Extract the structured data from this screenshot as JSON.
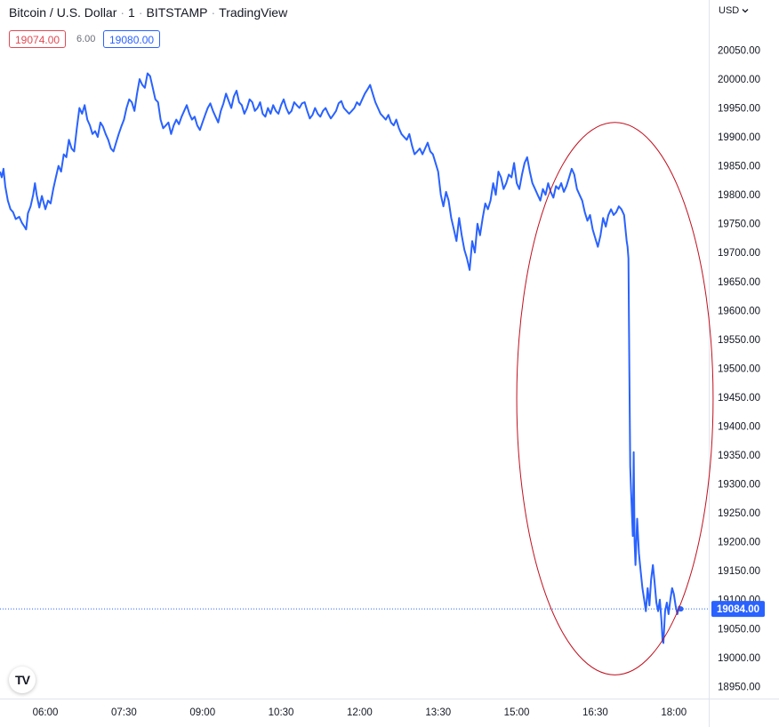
{
  "header": {
    "symbol": "Bitcoin / U.S. Dollar",
    "interval": "1",
    "exchange": "BITSTAMP",
    "provider": "TradingView",
    "separator": "·"
  },
  "quotes": {
    "bid": "19074.00",
    "spread": "6.00",
    "ask": "19080.00"
  },
  "currency_button": "USD",
  "logo": "TV",
  "colors": {
    "line": "#2962ff",
    "annotation": "#c0101e",
    "bid": "#e04a54",
    "ask": "#2962ff"
  },
  "chart_data": {
    "type": "line",
    "title": "Bitcoin / U.S. Dollar · 1 · BITSTAMP · TradingView",
    "xlabel": "",
    "ylabel": "",
    "x_ticks": [
      "06:00",
      "07:30",
      "09:00",
      "10:30",
      "12:00",
      "13:30",
      "15:00",
      "16:30",
      "18:00"
    ],
    "y_ticks": [
      "20050.00",
      "20000.00",
      "19950.00",
      "19900.00",
      "19850.00",
      "19800.00",
      "19750.00",
      "19700.00",
      "19650.00",
      "19600.00",
      "19550.00",
      "19500.00",
      "19450.00",
      "19400.00",
      "19350.00",
      "19300.00",
      "19250.00",
      "19200.00",
      "19150.00",
      "19100.00",
      "19050.00",
      "19000.00",
      "18950.00"
    ],
    "ylim": [
      18930,
      20100
    ],
    "xlim": [
      "05:08",
      "18:40"
    ],
    "grid": false,
    "last_price_label": "19084.00",
    "last_price": 19084,
    "annotation": {
      "type": "ellipse",
      "from_time": "15:00",
      "to_time": "18:45",
      "from_price": 18970,
      "to_price": 19925
    },
    "series": [
      {
        "points": [
          [
            "05:08",
            19840
          ],
          [
            "05:10",
            19830
          ],
          [
            "05:12",
            19845
          ],
          [
            "05:14",
            19815
          ],
          [
            "05:17",
            19790
          ],
          [
            "05:20",
            19775
          ],
          [
            "05:23",
            19770
          ],
          [
            "05:26",
            19758
          ],
          [
            "05:30",
            19762
          ],
          [
            "05:33",
            19752
          ],
          [
            "05:36",
            19745
          ],
          [
            "05:38",
            19740
          ],
          [
            "05:40",
            19768
          ],
          [
            "05:43",
            19780
          ],
          [
            "05:46",
            19800
          ],
          [
            "05:48",
            19820
          ],
          [
            "05:50",
            19800
          ],
          [
            "05:53",
            19778
          ],
          [
            "05:56",
            19798
          ],
          [
            "06:00",
            19775
          ],
          [
            "06:03",
            19790
          ],
          [
            "06:06",
            19785
          ],
          [
            "06:09",
            19810
          ],
          [
            "06:12",
            19830
          ],
          [
            "06:15",
            19850
          ],
          [
            "06:18",
            19840
          ],
          [
            "06:21",
            19870
          ],
          [
            "06:24",
            19865
          ],
          [
            "06:27",
            19895
          ],
          [
            "06:30",
            19880
          ],
          [
            "06:33",
            19875
          ],
          [
            "06:36",
            19915
          ],
          [
            "06:39",
            19950
          ],
          [
            "06:42",
            19940
          ],
          [
            "06:45",
            19955
          ],
          [
            "06:48",
            19930
          ],
          [
            "06:51",
            19920
          ],
          [
            "06:54",
            19905
          ],
          [
            "06:57",
            19910
          ],
          [
            "07:00",
            19900
          ],
          [
            "07:03",
            19925
          ],
          [
            "07:06",
            19918
          ],
          [
            "07:09",
            19905
          ],
          [
            "07:12",
            19895
          ],
          [
            "07:15",
            19880
          ],
          [
            "07:18",
            19875
          ],
          [
            "07:21",
            19890
          ],
          [
            "07:24",
            19905
          ],
          [
            "07:27",
            19918
          ],
          [
            "07:30",
            19930
          ],
          [
            "07:33",
            19950
          ],
          [
            "07:36",
            19965
          ],
          [
            "07:39",
            19960
          ],
          [
            "07:42",
            19945
          ],
          [
            "07:45",
            19975
          ],
          [
            "07:48",
            20000
          ],
          [
            "07:51",
            19990
          ],
          [
            "07:54",
            19985
          ],
          [
            "07:57",
            20010
          ],
          [
            "08:00",
            20005
          ],
          [
            "08:03",
            19985
          ],
          [
            "08:06",
            19965
          ],
          [
            "08:09",
            19960
          ],
          [
            "08:12",
            19930
          ],
          [
            "08:15",
            19915
          ],
          [
            "08:18",
            19920
          ],
          [
            "08:21",
            19925
          ],
          [
            "08:24",
            19905
          ],
          [
            "08:27",
            19920
          ],
          [
            "08:30",
            19930
          ],
          [
            "08:33",
            19922
          ],
          [
            "08:36",
            19935
          ],
          [
            "08:39",
            19945
          ],
          [
            "08:42",
            19955
          ],
          [
            "08:45",
            19940
          ],
          [
            "08:48",
            19930
          ],
          [
            "08:51",
            19935
          ],
          [
            "08:54",
            19920
          ],
          [
            "08:57",
            19912
          ],
          [
            "09:00",
            19925
          ],
          [
            "09:03",
            19938
          ],
          [
            "09:06",
            19950
          ],
          [
            "09:09",
            19958
          ],
          [
            "09:12",
            19945
          ],
          [
            "09:15",
            19935
          ],
          [
            "09:18",
            19925
          ],
          [
            "09:21",
            19945
          ],
          [
            "09:24",
            19958
          ],
          [
            "09:27",
            19975
          ],
          [
            "09:30",
            19962
          ],
          [
            "09:33",
            19950
          ],
          [
            "09:36",
            19970
          ],
          [
            "09:39",
            19980
          ],
          [
            "09:42",
            19960
          ],
          [
            "09:45",
            19955
          ],
          [
            "09:48",
            19940
          ],
          [
            "09:51",
            19950
          ],
          [
            "09:54",
            19965
          ],
          [
            "09:57",
            19960
          ],
          [
            "10:00",
            19945
          ],
          [
            "10:03",
            19950
          ],
          [
            "10:06",
            19960
          ],
          [
            "10:09",
            19940
          ],
          [
            "10:12",
            19935
          ],
          [
            "10:15",
            19950
          ],
          [
            "10:18",
            19940
          ],
          [
            "10:21",
            19955
          ],
          [
            "10:24",
            19945
          ],
          [
            "10:27",
            19940
          ],
          [
            "10:30",
            19955
          ],
          [
            "10:33",
            19965
          ],
          [
            "10:36",
            19950
          ],
          [
            "10:39",
            19940
          ],
          [
            "10:42",
            19945
          ],
          [
            "10:45",
            19960
          ],
          [
            "10:48",
            19955
          ],
          [
            "10:51",
            19950
          ],
          [
            "10:54",
            19958
          ],
          [
            "10:57",
            19960
          ],
          [
            "11:00",
            19945
          ],
          [
            "11:03",
            19932
          ],
          [
            "11:06",
            19938
          ],
          [
            "11:09",
            19950
          ],
          [
            "11:12",
            19940
          ],
          [
            "11:15",
            19935
          ],
          [
            "11:18",
            19945
          ],
          [
            "11:21",
            19950
          ],
          [
            "11:24",
            19940
          ],
          [
            "11:27",
            19932
          ],
          [
            "11:30",
            19938
          ],
          [
            "11:33",
            19945
          ],
          [
            "11:36",
            19958
          ],
          [
            "11:39",
            19962
          ],
          [
            "11:42",
            19950
          ],
          [
            "11:45",
            19945
          ],
          [
            "11:48",
            19940
          ],
          [
            "11:51",
            19945
          ],
          [
            "11:54",
            19950
          ],
          [
            "11:57",
            19960
          ],
          [
            "12:00",
            19955
          ],
          [
            "12:03",
            19965
          ],
          [
            "12:06",
            19975
          ],
          [
            "12:09",
            19982
          ],
          [
            "12:12",
            19990
          ],
          [
            "12:15",
            19975
          ],
          [
            "12:18",
            19960
          ],
          [
            "12:21",
            19950
          ],
          [
            "12:24",
            19940
          ],
          [
            "12:27",
            19935
          ],
          [
            "12:30",
            19930
          ],
          [
            "12:33",
            19938
          ],
          [
            "12:36",
            19925
          ],
          [
            "12:39",
            19920
          ],
          [
            "12:42",
            19930
          ],
          [
            "12:45",
            19915
          ],
          [
            "12:48",
            19905
          ],
          [
            "12:51",
            19900
          ],
          [
            "12:54",
            19895
          ],
          [
            "12:57",
            19905
          ],
          [
            "13:00",
            19885
          ],
          [
            "13:03",
            19870
          ],
          [
            "13:06",
            19875
          ],
          [
            "13:09",
            19880
          ],
          [
            "13:12",
            19870
          ],
          [
            "13:15",
            19880
          ],
          [
            "13:18",
            19890
          ],
          [
            "13:21",
            19875
          ],
          [
            "13:24",
            19870
          ],
          [
            "13:27",
            19855
          ],
          [
            "13:30",
            19840
          ],
          [
            "13:33",
            19800
          ],
          [
            "13:36",
            19780
          ],
          [
            "13:39",
            19805
          ],
          [
            "13:42",
            19790
          ],
          [
            "13:45",
            19760
          ],
          [
            "13:48",
            19740
          ],
          [
            "13:51",
            19720
          ],
          [
            "13:54",
            19760
          ],
          [
            "13:57",
            19730
          ],
          [
            "14:00",
            19705
          ],
          [
            "14:03",
            19690
          ],
          [
            "14:06",
            19670
          ],
          [
            "14:09",
            19720
          ],
          [
            "14:12",
            19700
          ],
          [
            "14:15",
            19750
          ],
          [
            "14:18",
            19730
          ],
          [
            "14:21",
            19760
          ],
          [
            "14:24",
            19785
          ],
          [
            "14:27",
            19775
          ],
          [
            "14:30",
            19790
          ],
          [
            "14:33",
            19820
          ],
          [
            "14:36",
            19800
          ],
          [
            "14:39",
            19840
          ],
          [
            "14:42",
            19830
          ],
          [
            "14:45",
            19810
          ],
          [
            "14:48",
            19820
          ],
          [
            "14:51",
            19835
          ],
          [
            "14:54",
            19830
          ],
          [
            "14:57",
            19855
          ],
          [
            "15:00",
            19820
          ],
          [
            "15:03",
            19810
          ],
          [
            "15:06",
            19835
          ],
          [
            "15:09",
            19855
          ],
          [
            "15:12",
            19865
          ],
          [
            "15:15",
            19840
          ],
          [
            "15:18",
            19820
          ],
          [
            "15:21",
            19810
          ],
          [
            "15:24",
            19800
          ],
          [
            "15:27",
            19790
          ],
          [
            "15:30",
            19810
          ],
          [
            "15:33",
            19800
          ],
          [
            "15:36",
            19820
          ],
          [
            "15:39",
            19805
          ],
          [
            "15:42",
            19795
          ],
          [
            "15:45",
            19815
          ],
          [
            "15:48",
            19810
          ],
          [
            "15:51",
            19820
          ],
          [
            "15:54",
            19805
          ],
          [
            "15:57",
            19815
          ],
          [
            "16:00",
            19830
          ],
          [
            "16:03",
            19845
          ],
          [
            "16:06",
            19835
          ],
          [
            "16:09",
            19810
          ],
          [
            "16:12",
            19800
          ],
          [
            "16:15",
            19790
          ],
          [
            "16:18",
            19770
          ],
          [
            "16:21",
            19755
          ],
          [
            "16:24",
            19765
          ],
          [
            "16:27",
            19740
          ],
          [
            "16:30",
            19725
          ],
          [
            "16:33",
            19710
          ],
          [
            "16:36",
            19730
          ],
          [
            "16:39",
            19760
          ],
          [
            "16:42",
            19745
          ],
          [
            "16:45",
            19765
          ],
          [
            "16:48",
            19775
          ],
          [
            "16:51",
            19765
          ],
          [
            "16:54",
            19770
          ],
          [
            "16:57",
            19780
          ],
          [
            "17:00",
            19775
          ],
          [
            "17:03",
            19765
          ],
          [
            "17:06",
            19720
          ],
          [
            "17:07",
            19710
          ],
          [
            "17:08",
            19690
          ],
          [
            "17:09",
            19500
          ],
          [
            "17:10",
            19330
          ],
          [
            "17:11",
            19290
          ],
          [
            "17:12",
            19250
          ],
          [
            "17:13",
            19210
          ],
          [
            "17:14",
            19355
          ],
          [
            "17:15",
            19200
          ],
          [
            "17:16",
            19160
          ],
          [
            "17:18",
            19240
          ],
          [
            "17:20",
            19180
          ],
          [
            "17:22",
            19150
          ],
          [
            "17:24",
            19120
          ],
          [
            "17:26",
            19100
          ],
          [
            "17:28",
            19080
          ],
          [
            "17:30",
            19120
          ],
          [
            "17:32",
            19090
          ],
          [
            "17:34",
            19135
          ],
          [
            "17:36",
            19160
          ],
          [
            "17:38",
            19130
          ],
          [
            "17:40",
            19095
          ],
          [
            "17:42",
            19080
          ],
          [
            "17:44",
            19100
          ],
          [
            "17:46",
            19060
          ],
          [
            "17:47",
            19030
          ],
          [
            "17:48",
            19025
          ],
          [
            "17:50",
            19080
          ],
          [
            "17:52",
            19095
          ],
          [
            "17:54",
            19075
          ],
          [
            "17:56",
            19100
          ],
          [
            "17:58",
            19120
          ],
          [
            "18:00",
            19110
          ],
          [
            "18:02",
            19090
          ],
          [
            "18:04",
            19075
          ],
          [
            "18:06",
            19088
          ],
          [
            "18:08",
            19084
          ]
        ]
      }
    ]
  }
}
